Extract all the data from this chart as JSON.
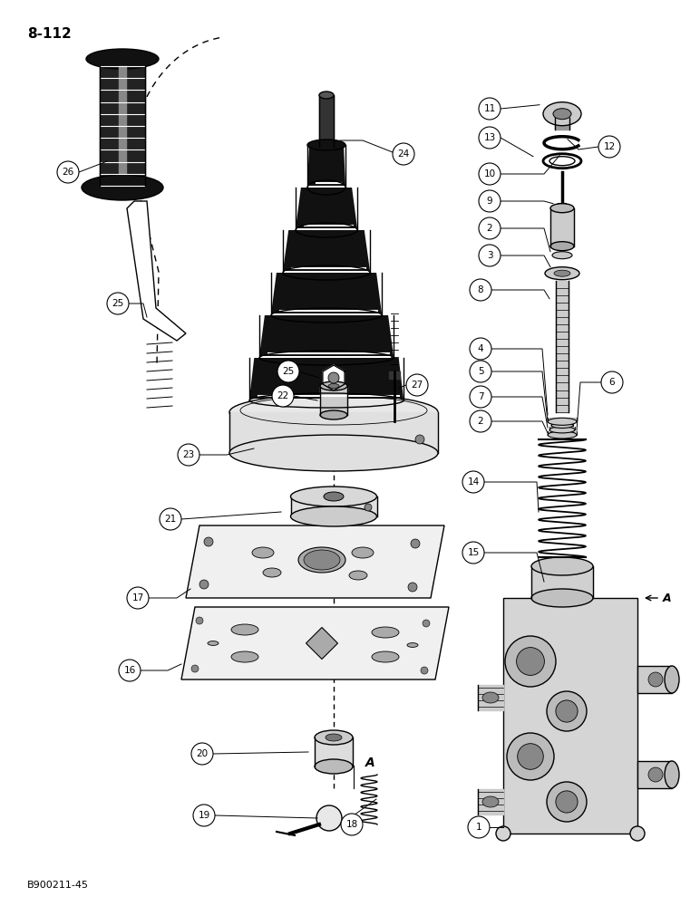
{
  "page_label": "8-112",
  "footer_label": "B900211-45",
  "background_color": "#ffffff",
  "line_color": "#000000",
  "lw": 1.0
}
